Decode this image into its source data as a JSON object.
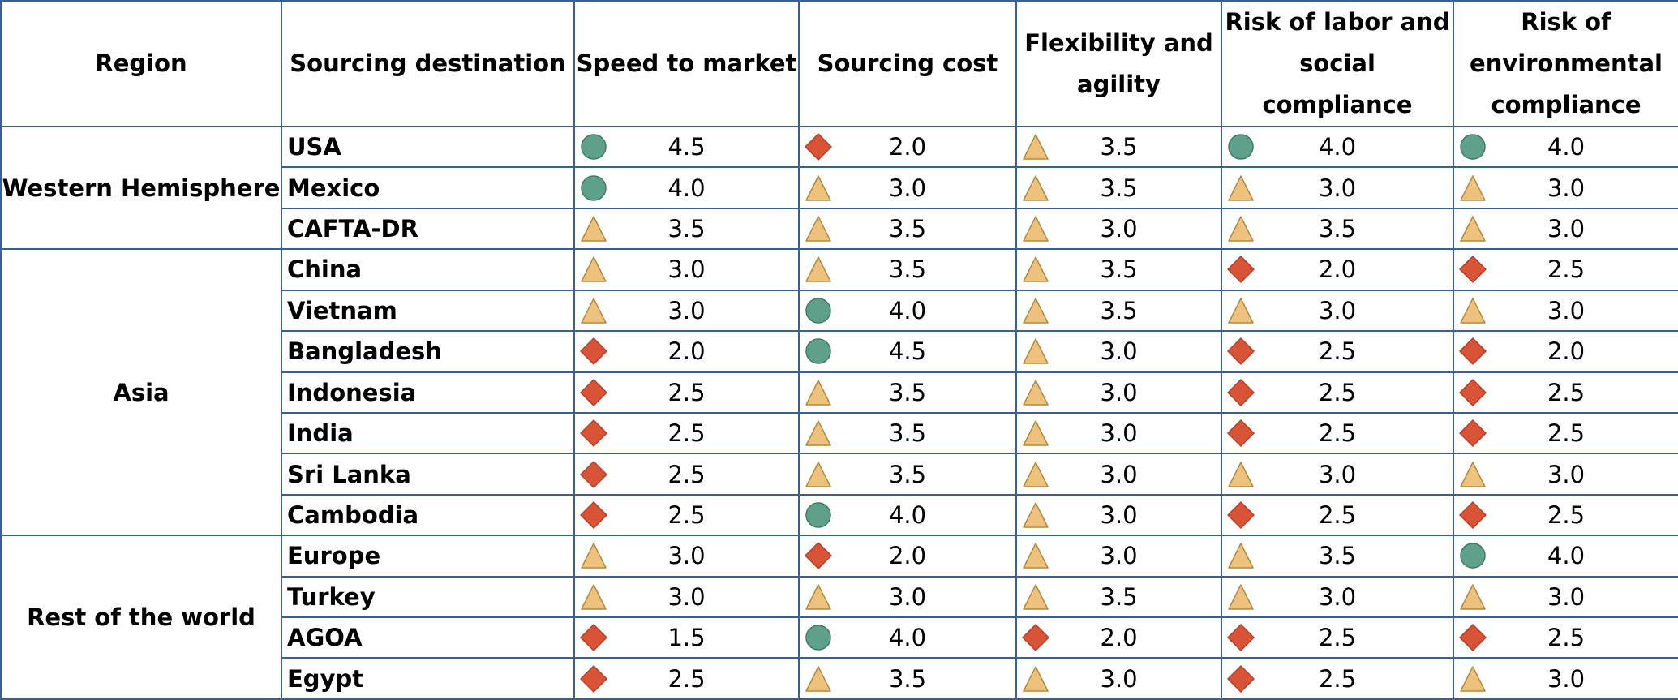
{
  "headers": {
    "region": "Region",
    "destination": "Sourcing destination",
    "metrics": [
      "Speed to market",
      "Sourcing cost",
      "Flexibility and agility",
      "Risk of labor and social compliance",
      "Risk of environmental compliance"
    ]
  },
  "rating_icons": {
    "circle": {
      "icon": "green-circle-icon",
      "color": "#5fa08a"
    },
    "triangle": {
      "icon": "yellow-triangle-icon",
      "color": "#eec27d"
    },
    "diamond": {
      "icon": "red-diamond-icon",
      "color": "#d95436"
    }
  },
  "regions": [
    {
      "name": "Western Hemisphere",
      "rows": [
        {
          "destination": "USA",
          "cells": [
            {
              "icon": "circle",
              "value": "4.5"
            },
            {
              "icon": "diamond",
              "value": "2.0"
            },
            {
              "icon": "triangle",
              "value": "3.5"
            },
            {
              "icon": "circle",
              "value": "4.0"
            },
            {
              "icon": "circle",
              "value": "4.0"
            }
          ]
        },
        {
          "destination": "Mexico",
          "cells": [
            {
              "icon": "circle",
              "value": "4.0"
            },
            {
              "icon": "triangle",
              "value": "3.0"
            },
            {
              "icon": "triangle",
              "value": "3.5"
            },
            {
              "icon": "triangle",
              "value": "3.0"
            },
            {
              "icon": "triangle",
              "value": "3.0"
            }
          ]
        },
        {
          "destination": "CAFTA-DR",
          "cells": [
            {
              "icon": "triangle",
              "value": "3.5"
            },
            {
              "icon": "triangle",
              "value": "3.5"
            },
            {
              "icon": "triangle",
              "value": "3.0"
            },
            {
              "icon": "triangle",
              "value": "3.5"
            },
            {
              "icon": "triangle",
              "value": "3.0"
            }
          ]
        }
      ]
    },
    {
      "name": "Asia",
      "rows": [
        {
          "destination": "China",
          "cells": [
            {
              "icon": "triangle",
              "value": "3.0"
            },
            {
              "icon": "triangle",
              "value": "3.5"
            },
            {
              "icon": "triangle",
              "value": "3.5"
            },
            {
              "icon": "diamond",
              "value": "2.0"
            },
            {
              "icon": "diamond",
              "value": "2.5"
            }
          ]
        },
        {
          "destination": "Vietnam",
          "cells": [
            {
              "icon": "triangle",
              "value": "3.0"
            },
            {
              "icon": "circle",
              "value": "4.0"
            },
            {
              "icon": "triangle",
              "value": "3.5"
            },
            {
              "icon": "triangle",
              "value": "3.0"
            },
            {
              "icon": "triangle",
              "value": "3.0"
            }
          ]
        },
        {
          "destination": "Bangladesh",
          "cells": [
            {
              "icon": "diamond",
              "value": "2.0"
            },
            {
              "icon": "circle",
              "value": "4.5"
            },
            {
              "icon": "triangle",
              "value": "3.0"
            },
            {
              "icon": "diamond",
              "value": "2.5"
            },
            {
              "icon": "diamond",
              "value": "2.0"
            }
          ]
        },
        {
          "destination": "Indonesia",
          "cells": [
            {
              "icon": "diamond",
              "value": "2.5"
            },
            {
              "icon": "triangle",
              "value": "3.5"
            },
            {
              "icon": "triangle",
              "value": "3.0"
            },
            {
              "icon": "diamond",
              "value": "2.5"
            },
            {
              "icon": "diamond",
              "value": "2.5"
            }
          ]
        },
        {
          "destination": "India",
          "cells": [
            {
              "icon": "diamond",
              "value": "2.5"
            },
            {
              "icon": "triangle",
              "value": "3.5"
            },
            {
              "icon": "triangle",
              "value": "3.0"
            },
            {
              "icon": "diamond",
              "value": "2.5"
            },
            {
              "icon": "diamond",
              "value": "2.5"
            }
          ]
        },
        {
          "destination": "Sri Lanka",
          "cells": [
            {
              "icon": "diamond",
              "value": "2.5"
            },
            {
              "icon": "triangle",
              "value": "3.5"
            },
            {
              "icon": "triangle",
              "value": "3.0"
            },
            {
              "icon": "triangle",
              "value": "3.0"
            },
            {
              "icon": "triangle",
              "value": "3.0"
            }
          ]
        },
        {
          "destination": "Cambodia",
          "cells": [
            {
              "icon": "diamond",
              "value": "2.5"
            },
            {
              "icon": "circle",
              "value": "4.0"
            },
            {
              "icon": "triangle",
              "value": "3.0"
            },
            {
              "icon": "diamond",
              "value": "2.5"
            },
            {
              "icon": "diamond",
              "value": "2.5"
            }
          ]
        }
      ]
    },
    {
      "name": "Rest of the world",
      "rows": [
        {
          "destination": "Europe",
          "cells": [
            {
              "icon": "triangle",
              "value": "3.0"
            },
            {
              "icon": "diamond",
              "value": "2.0"
            },
            {
              "icon": "triangle",
              "value": "3.0"
            },
            {
              "icon": "triangle",
              "value": "3.5"
            },
            {
              "icon": "circle",
              "value": "4.0"
            }
          ]
        },
        {
          "destination": "Turkey",
          "cells": [
            {
              "icon": "triangle",
              "value": "3.0"
            },
            {
              "icon": "triangle",
              "value": "3.0"
            },
            {
              "icon": "triangle",
              "value": "3.5"
            },
            {
              "icon": "triangle",
              "value": "3.0"
            },
            {
              "icon": "triangle",
              "value": "3.0"
            }
          ]
        },
        {
          "destination": "AGOA",
          "cells": [
            {
              "icon": "diamond",
              "value": "1.5"
            },
            {
              "icon": "circle",
              "value": "4.0"
            },
            {
              "icon": "diamond",
              "value": "2.0"
            },
            {
              "icon": "diamond",
              "value": "2.5"
            },
            {
              "icon": "diamond",
              "value": "2.5"
            }
          ]
        },
        {
          "destination": "Egypt",
          "cells": [
            {
              "icon": "diamond",
              "value": "2.5"
            },
            {
              "icon": "triangle",
              "value": "3.5"
            },
            {
              "icon": "triangle",
              "value": "3.0"
            },
            {
              "icon": "diamond",
              "value": "2.5"
            },
            {
              "icon": "triangle",
              "value": "3.0"
            }
          ]
        }
      ]
    }
  ]
}
